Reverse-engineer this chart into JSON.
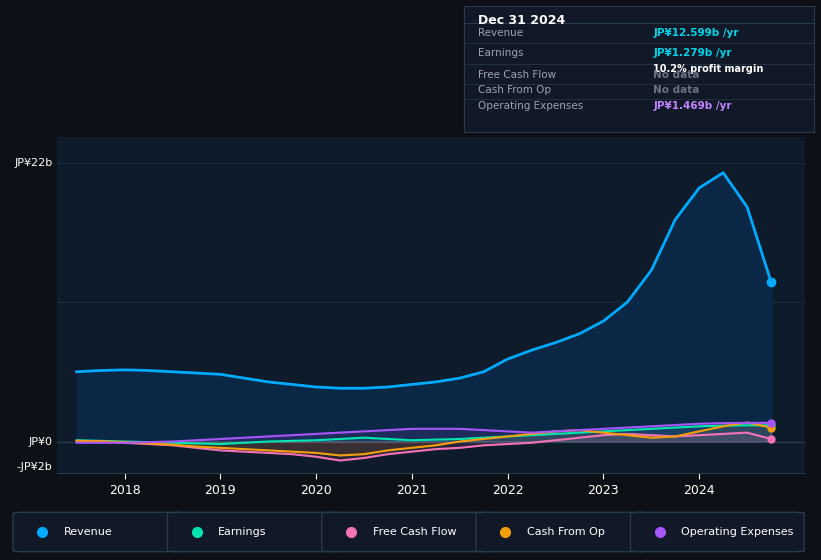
{
  "background_color": "#0d1117",
  "chart_bg": "#0d1b2a",
  "grid_color": "#1e2d3d",
  "title_box": {
    "bg": "#111827",
    "border": "#2a3a4a",
    "title": "Dec 31 2024",
    "rows": [
      {
        "label": "Revenue",
        "value": "JP¥12.599b /yr",
        "value_color": "#00d4e8",
        "note": null
      },
      {
        "label": "Earnings",
        "value": "JP¥1.279b /yr",
        "value_color": "#00d4e8",
        "note": "10.2% profit margin"
      },
      {
        "label": "Free Cash Flow",
        "value": "No data",
        "value_color": "#6b7280",
        "note": null
      },
      {
        "label": "Cash From Op",
        "value": "No data",
        "value_color": "#6b7280",
        "note": null
      },
      {
        "label": "Operating Expenses",
        "value": "JP¥1.469b /yr",
        "value_color": "#c084fc",
        "note": null
      }
    ]
  },
  "y_axis_label_top": "JP¥22b",
  "y_axis_label_zero": "JP¥0",
  "y_axis_label_neg": "-JP¥2b",
  "ylim": [
    -2.5,
    24
  ],
  "xlim": [
    2017.3,
    2025.1
  ],
  "revenue": {
    "x": [
      2017.5,
      2017.75,
      2018.0,
      2018.25,
      2018.5,
      2018.75,
      2019.0,
      2019.25,
      2019.5,
      2019.75,
      2020.0,
      2020.25,
      2020.5,
      2020.75,
      2021.0,
      2021.25,
      2021.5,
      2021.75,
      2022.0,
      2022.25,
      2022.5,
      2022.75,
      2023.0,
      2023.25,
      2023.5,
      2023.75,
      2024.0,
      2024.25,
      2024.5,
      2024.75
    ],
    "y": [
      5.5,
      5.6,
      5.65,
      5.6,
      5.5,
      5.4,
      5.3,
      5.0,
      4.7,
      4.5,
      4.3,
      4.2,
      4.2,
      4.3,
      4.5,
      4.7,
      5.0,
      5.5,
      6.5,
      7.2,
      7.8,
      8.5,
      9.5,
      11.0,
      13.5,
      17.5,
      20.0,
      21.2,
      18.5,
      12.6
    ],
    "color": "#00aaff",
    "fill": "#0a2a4a",
    "label": "Revenue",
    "linewidth": 2.0
  },
  "earnings": {
    "x": [
      2017.5,
      2017.75,
      2018.0,
      2018.25,
      2018.5,
      2018.75,
      2019.0,
      2019.25,
      2019.5,
      2019.75,
      2020.0,
      2020.25,
      2020.5,
      2020.75,
      2021.0,
      2021.25,
      2021.5,
      2021.75,
      2022.0,
      2022.25,
      2022.5,
      2022.75,
      2023.0,
      2023.25,
      2023.5,
      2023.75,
      2024.0,
      2024.25,
      2024.5,
      2024.75
    ],
    "y": [
      0.1,
      0.05,
      0.0,
      -0.05,
      -0.1,
      -0.15,
      -0.2,
      -0.1,
      0.0,
      0.05,
      0.1,
      0.2,
      0.3,
      0.2,
      0.1,
      0.15,
      0.2,
      0.3,
      0.4,
      0.5,
      0.6,
      0.7,
      0.8,
      0.9,
      1.0,
      1.1,
      1.2,
      1.25,
      1.28,
      1.28
    ],
    "color": "#00e5b0",
    "label": "Earnings",
    "linewidth": 1.5
  },
  "free_cash_flow": {
    "x": [
      2017.5,
      2017.75,
      2018.0,
      2018.25,
      2018.5,
      2018.75,
      2019.0,
      2019.25,
      2019.5,
      2019.75,
      2020.0,
      2020.25,
      2020.5,
      2020.75,
      2021.0,
      2021.25,
      2021.5,
      2021.75,
      2022.0,
      2022.25,
      2022.5,
      2022.75,
      2023.0,
      2023.25,
      2023.5,
      2023.75,
      2024.0,
      2024.25,
      2024.5,
      2024.75
    ],
    "y": [
      0.05,
      0.0,
      -0.1,
      -0.2,
      -0.3,
      -0.5,
      -0.7,
      -0.8,
      -0.9,
      -1.0,
      -1.2,
      -1.5,
      -1.3,
      -1.0,
      -0.8,
      -0.6,
      -0.5,
      -0.3,
      -0.2,
      -0.1,
      0.1,
      0.3,
      0.5,
      0.6,
      0.5,
      0.4,
      0.5,
      0.6,
      0.7,
      0.2
    ],
    "color": "#f472b6",
    "label": "Free Cash Flow",
    "linewidth": 1.5
  },
  "cash_from_op": {
    "x": [
      2017.5,
      2017.75,
      2018.0,
      2018.25,
      2018.5,
      2018.75,
      2019.0,
      2019.25,
      2019.5,
      2019.75,
      2020.0,
      2020.25,
      2020.5,
      2020.75,
      2021.0,
      2021.25,
      2021.5,
      2021.75,
      2022.0,
      2022.25,
      2022.5,
      2022.75,
      2023.0,
      2023.25,
      2023.5,
      2023.75,
      2024.0,
      2024.25,
      2024.5,
      2024.75
    ],
    "y": [
      0.05,
      0.02,
      -0.05,
      -0.15,
      -0.25,
      -0.4,
      -0.5,
      -0.6,
      -0.7,
      -0.8,
      -0.9,
      -1.1,
      -1.0,
      -0.7,
      -0.5,
      -0.3,
      0.0,
      0.2,
      0.4,
      0.6,
      0.8,
      0.9,
      0.7,
      0.5,
      0.3,
      0.4,
      0.8,
      1.2,
      1.5,
      1.1
    ],
    "color": "#f59e0b",
    "label": "Cash From Op",
    "linewidth": 1.5
  },
  "operating_expenses": {
    "x": [
      2017.5,
      2017.75,
      2018.0,
      2018.25,
      2018.5,
      2018.75,
      2019.0,
      2019.25,
      2019.5,
      2019.75,
      2020.0,
      2020.25,
      2020.5,
      2020.75,
      2021.0,
      2021.25,
      2021.5,
      2021.75,
      2022.0,
      2022.25,
      2022.5,
      2022.75,
      2023.0,
      2023.25,
      2023.5,
      2023.75,
      2024.0,
      2024.25,
      2024.5,
      2024.75
    ],
    "y": [
      -0.1,
      -0.1,
      -0.1,
      -0.05,
      0.0,
      0.1,
      0.2,
      0.3,
      0.4,
      0.5,
      0.6,
      0.7,
      0.8,
      0.9,
      1.0,
      1.0,
      1.0,
      0.9,
      0.8,
      0.7,
      0.8,
      0.9,
      1.0,
      1.1,
      1.2,
      1.3,
      1.4,
      1.45,
      1.47,
      1.47
    ],
    "color": "#a855f7",
    "label": "Operating Expenses",
    "linewidth": 1.5
  },
  "legend_items": [
    {
      "label": "Revenue",
      "color": "#00aaff"
    },
    {
      "label": "Earnings",
      "color": "#00e5b0"
    },
    {
      "label": "Free Cash Flow",
      "color": "#f472b6"
    },
    {
      "label": "Cash From Op",
      "color": "#f59e0b"
    },
    {
      "label": "Operating Expenses",
      "color": "#a855f7"
    }
  ],
  "divider_color": "#2a3a4a",
  "text_muted": "#6b7280",
  "text_white": "#ffffff",
  "text_label": "#9ca3af"
}
